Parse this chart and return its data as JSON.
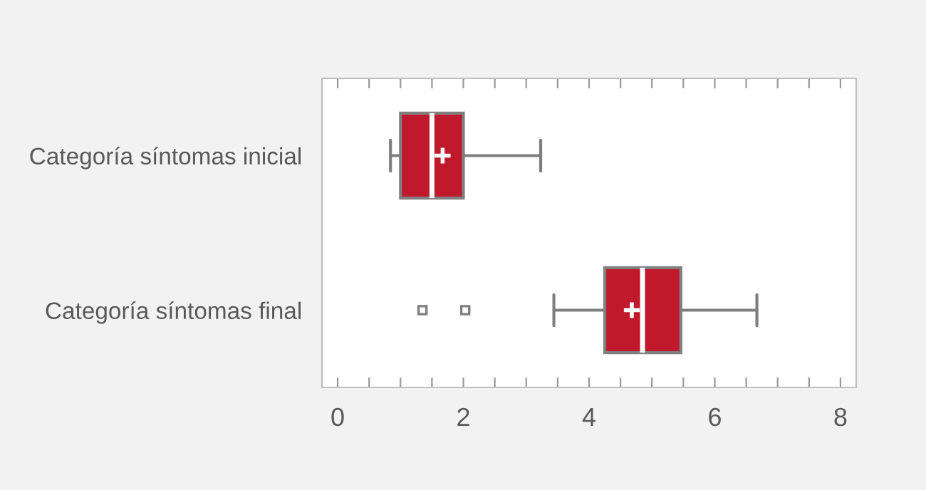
{
  "chart_data": {
    "type": "box",
    "orientation": "horizontal",
    "categories": [
      "Categoría síntomas inicial",
      "Categoría síntomas final"
    ],
    "boxes": [
      {
        "low": 0.84,
        "q1": 1.0,
        "median": 1.5,
        "q3": 2.0,
        "high": 3.23,
        "mean": 1.67
      },
      {
        "low": 3.44,
        "q1": 4.25,
        "median": 4.85,
        "q3": 5.46,
        "high": 6.67,
        "mean": 4.68,
        "outliers": [
          1.35,
          2.03
        ]
      }
    ],
    "color": "#c0192c",
    "xlim": [
      -0.25,
      8.25
    ],
    "xticks": [
      0,
      {
        "value": 0.5,
        "label": null
      },
      {
        "value": 1,
        "label": null
      },
      {
        "value": 1.5,
        "label": null
      },
      2,
      {
        "value": 2.5,
        "label": null
      },
      {
        "value": 3,
        "label": null
      },
      {
        "value": 3.5,
        "label": null
      },
      4,
      {
        "value": 4.5,
        "label": null
      },
      {
        "value": 5,
        "label": null
      },
      {
        "value": 5.5,
        "label": null
      },
      6,
      {
        "value": 6.5,
        "label": null
      },
      {
        "value": 7,
        "label": null
      },
      {
        "value": 7.5,
        "label": null
      },
      8
    ],
    "grid": false,
    "legend": false
  }
}
